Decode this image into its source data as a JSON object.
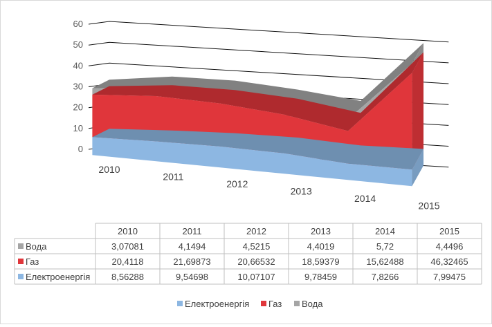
{
  "chart_data": {
    "type": "area",
    "subtype": "3d-stacked-area",
    "categories": [
      "2010",
      "2011",
      "2012",
      "2013",
      "2014",
      "2015"
    ],
    "series": [
      {
        "name": "Вода",
        "color": "#a5a5a5",
        "labels": [
          "3,07081",
          "4,1494",
          "4,5215",
          "4,4019",
          "5,72",
          "4,4496"
        ],
        "values": [
          3.07081,
          4.1494,
          4.5215,
          4.4019,
          5.72,
          4.4496
        ]
      },
      {
        "name": "Газ",
        "color": "#e0363b",
        "labels": [
          "20,4118",
          "21,69873",
          "20,66532",
          "18,59379",
          "15,62488",
          "46,32465"
        ],
        "values": [
          20.4118,
          21.69873,
          20.66532,
          18.59379,
          15.62488,
          46.32465
        ]
      },
      {
        "name": "Електроенергія",
        "color": "#8db7e2",
        "labels": [
          "8,56288",
          "9,54698",
          "10,07107",
          "9,78459",
          "7,8266",
          "7,99475"
        ],
        "values": [
          8.56288,
          9.54698,
          10.07107,
          9.78459,
          7.8266,
          7.99475
        ]
      }
    ],
    "y_ticks": [
      "0",
      "10",
      "20",
      "30",
      "40",
      "50",
      "60"
    ],
    "ylim": [
      0,
      60
    ],
    "grid": true,
    "data_table": true,
    "legend_position": "bottom",
    "legend_order": [
      "Електроенергія",
      "Газ",
      "Вода"
    ]
  }
}
